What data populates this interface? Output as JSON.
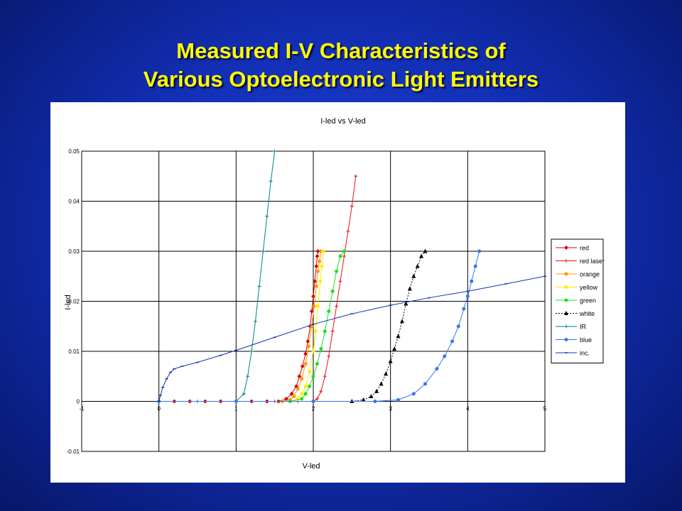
{
  "slide": {
    "title_line1": "Measured I-V Characteristics of",
    "title_line2": "Various Optoelectronic Light Emitters"
  },
  "chart_data": {
    "type": "scatter",
    "title": "I-led vs V-led",
    "xlabel": "V-led",
    "ylabel": "I-led",
    "xlim": [
      -1,
      5
    ],
    "ylim": [
      -0.01,
      0.05
    ],
    "xticks": [
      -1,
      0,
      1,
      2,
      3,
      4,
      5
    ],
    "yticks": [
      -0.01,
      0,
      0.01,
      0.02,
      0.03,
      0.04,
      0.05
    ],
    "xtick_labels": [
      "-1",
      "0",
      "1",
      "2",
      "3",
      "4",
      "5"
    ],
    "ytick_labels": [
      "-0.01",
      "0",
      "0.01",
      "0.02",
      "0.03",
      "0.04",
      "0.05"
    ],
    "grid": true,
    "legend_position": "right",
    "series": [
      {
        "name": "red",
        "color": "#dd0000",
        "marker": "diamond",
        "x": [
          0.0,
          0.2,
          0.4,
          0.6,
          0.8,
          1.0,
          1.2,
          1.4,
          1.55,
          1.65,
          1.72,
          1.78,
          1.82,
          1.86,
          1.9,
          1.93,
          1.96,
          1.98,
          2.0,
          2.02,
          2.04,
          2.05,
          2.06
        ],
        "y": [
          0,
          0,
          0,
          0,
          0,
          0,
          0,
          0,
          0,
          0.0005,
          0.0015,
          0.003,
          0.005,
          0.007,
          0.0095,
          0.012,
          0.015,
          0.018,
          0.021,
          0.024,
          0.027,
          0.029,
          0.03
        ]
      },
      {
        "name": "red laser",
        "color": "#ee1111",
        "marker": "plus",
        "x": [
          1.5,
          1.8,
          2.0,
          2.05,
          2.1,
          2.15,
          2.2,
          2.25,
          2.3,
          2.35,
          2.4,
          2.45,
          2.5,
          2.55
        ],
        "y": [
          0,
          0,
          0,
          0.0005,
          0.002,
          0.005,
          0.009,
          0.014,
          0.019,
          0.024,
          0.029,
          0.034,
          0.039,
          0.045
        ]
      },
      {
        "name": "orange",
        "color": "#ff9900",
        "marker": "circle",
        "x": [
          1.6,
          1.7,
          1.75,
          1.8,
          1.85,
          1.9,
          1.94,
          1.98,
          2.01,
          2.04,
          2.06,
          2.08,
          2.1
        ],
        "y": [
          0,
          0.0003,
          0.001,
          0.0025,
          0.0045,
          0.0075,
          0.011,
          0.015,
          0.019,
          0.023,
          0.026,
          0.028,
          0.03
        ]
      },
      {
        "name": "yellow",
        "color": "#ffee00",
        "marker": "circle",
        "x": [
          1.7,
          1.8,
          1.85,
          1.9,
          1.95,
          2.0,
          2.03,
          2.06,
          2.09,
          2.11,
          2.13
        ],
        "y": [
          0,
          0.0005,
          0.0015,
          0.003,
          0.006,
          0.01,
          0.014,
          0.019,
          0.024,
          0.027,
          0.03
        ]
      },
      {
        "name": "green",
        "color": "#22dd22",
        "marker": "circle",
        "x": [
          1.7,
          1.85,
          1.9,
          1.95,
          2.0,
          2.05,
          2.1,
          2.15,
          2.2,
          2.25,
          2.3,
          2.35,
          2.4
        ],
        "y": [
          0,
          0.0005,
          0.0015,
          0.003,
          0.005,
          0.0075,
          0.0105,
          0.014,
          0.018,
          0.022,
          0.026,
          0.029,
          0.03
        ]
      },
      {
        "name": "white",
        "color": "#000000",
        "marker": "triangle",
        "x": [
          2.5,
          2.65,
          2.75,
          2.82,
          2.88,
          2.94,
          3.0,
          3.05,
          3.1,
          3.15,
          3.2,
          3.25,
          3.3,
          3.35,
          3.4,
          3.45
        ],
        "y": [
          0,
          0.0003,
          0.001,
          0.002,
          0.0035,
          0.0055,
          0.008,
          0.0105,
          0.013,
          0.016,
          0.0195,
          0.0225,
          0.025,
          0.027,
          0.029,
          0.03
        ]
      },
      {
        "name": "IR",
        "color": "#008080",
        "marker": "plus",
        "x": [
          0.0,
          0.5,
          1.0,
          1.1,
          1.15,
          1.2,
          1.25,
          1.3,
          1.35,
          1.4,
          1.45,
          1.5
        ],
        "y": [
          0,
          0,
          0,
          0.0015,
          0.005,
          0.01,
          0.016,
          0.023,
          0.03,
          0.037,
          0.044,
          0.05
        ]
      },
      {
        "name": "blue",
        "color": "#3377ee",
        "marker": "circle",
        "x": [
          0.0,
          1.0,
          2.0,
          2.8,
          3.1,
          3.3,
          3.45,
          3.6,
          3.7,
          3.8,
          3.88,
          3.95,
          4.0,
          4.05,
          4.1,
          4.15
        ],
        "y": [
          0,
          0,
          0,
          0,
          0.0003,
          0.0015,
          0.0035,
          0.0065,
          0.009,
          0.012,
          0.015,
          0.0185,
          0.021,
          0.024,
          0.027,
          0.03
        ]
      },
      {
        "name": "inc.",
        "color": "#1133aa",
        "marker": "dash",
        "x": [
          0.0,
          0.02,
          0.05,
          0.1,
          0.15,
          0.2,
          0.3,
          0.5,
          0.8,
          1.0,
          1.5,
          2.0,
          2.5,
          3.0,
          3.5,
          4.0,
          4.5,
          5.0
        ],
        "y": [
          0,
          0.0012,
          0.0028,
          0.0045,
          0.0058,
          0.0065,
          0.007,
          0.0078,
          0.0092,
          0.0102,
          0.0128,
          0.0154,
          0.0175,
          0.0192,
          0.0207,
          0.022,
          0.0235,
          0.025
        ]
      }
    ]
  }
}
